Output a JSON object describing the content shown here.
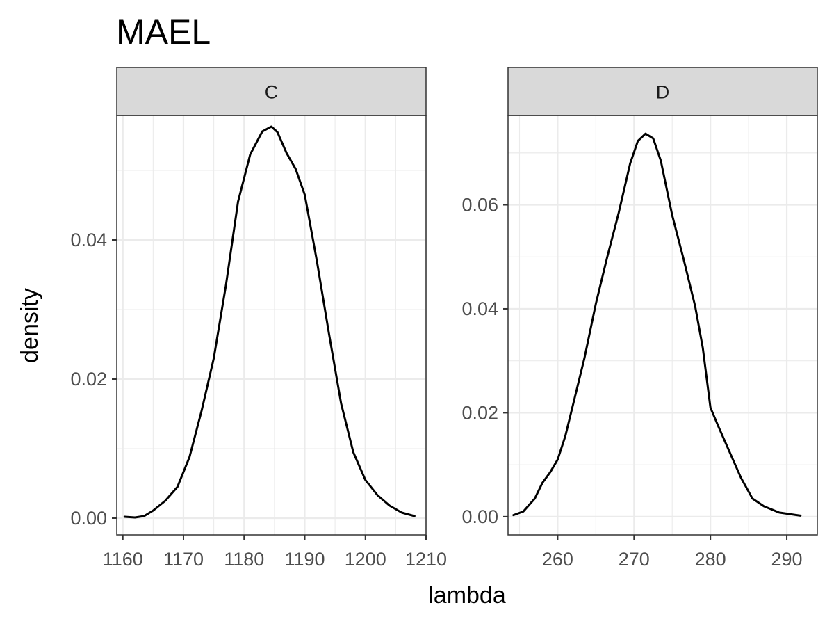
{
  "chart_data": {
    "type": "line",
    "title": "MAEL",
    "xlabel": "lambda",
    "ylabel": "density",
    "grid": true,
    "facets": [
      {
        "label": "C",
        "xlim": [
          1159,
          1210
        ],
        "ylim": [
          -0.0024,
          0.0579
        ],
        "xticks": [
          1160,
          1170,
          1180,
          1190,
          1200,
          1210
        ],
        "xtick_labels": [
          "1160",
          "1170",
          "1180",
          "1190",
          "1200",
          "1210"
        ],
        "yticks": [
          0,
          0.02,
          0.04
        ],
        "ytick_labels": [
          "0.00",
          "0.02",
          "0.04"
        ],
        "series": [
          {
            "x": [
              1160.3,
              1162.0,
              1163.5,
              1165.0,
              1167.0,
              1169.0,
              1171.0,
              1173.0,
              1175.0,
              1177.0,
              1179.0,
              1181.0,
              1183.0,
              1184.5,
              1185.5,
              1187.0,
              1188.5,
              1190.0,
              1192.0,
              1194.0,
              1196.0,
              1198.0,
              1200.0,
              1202.0,
              1204.0,
              1206.0,
              1208.1
            ],
            "y": [
              0.0002,
              0.0001,
              0.0003,
              0.0011,
              0.0025,
              0.0045,
              0.0088,
              0.0155,
              0.023,
              0.0335,
              0.0455,
              0.0523,
              0.0556,
              0.0563,
              0.0555,
              0.0525,
              0.0502,
              0.0465,
              0.037,
              0.0265,
              0.0165,
              0.0095,
              0.0055,
              0.0033,
              0.0018,
              0.0008,
              0.0003
            ]
          }
        ]
      },
      {
        "label": "D",
        "xlim": [
          253.5,
          294
        ],
        "ylim": [
          -0.0035,
          0.0772
        ],
        "xticks": [
          260,
          270,
          280,
          290
        ],
        "xtick_labels": [
          "260",
          "270",
          "280",
          "290"
        ],
        "yticks": [
          0,
          0.02,
          0.04,
          0.06
        ],
        "ytick_labels": [
          "0.00",
          "0.02",
          "0.04",
          "0.06"
        ],
        "series": [
          {
            "x": [
              254.2,
              255.5,
              257.0,
              258.0,
              259.0,
              260.0,
              261.0,
              262.0,
              263.5,
              265.0,
              266.5,
              268.0,
              269.5,
              270.5,
              271.5,
              272.5,
              273.5,
              275.0,
              276.5,
              278.0,
              279.0,
              280.0,
              281.0,
              282.5,
              284.0,
              285.5,
              287.0,
              289.0,
              291.8
            ],
            "y": [
              0.0003,
              0.001,
              0.0035,
              0.0065,
              0.0085,
              0.011,
              0.0155,
              0.0215,
              0.0305,
              0.041,
              0.05,
              0.0585,
              0.068,
              0.0723,
              0.0737,
              0.0728,
              0.0685,
              0.058,
              0.0495,
              0.0405,
              0.0325,
              0.021,
              0.0175,
              0.0125,
              0.0075,
              0.0035,
              0.002,
              0.0008,
              0.0002
            ]
          }
        ]
      }
    ]
  }
}
